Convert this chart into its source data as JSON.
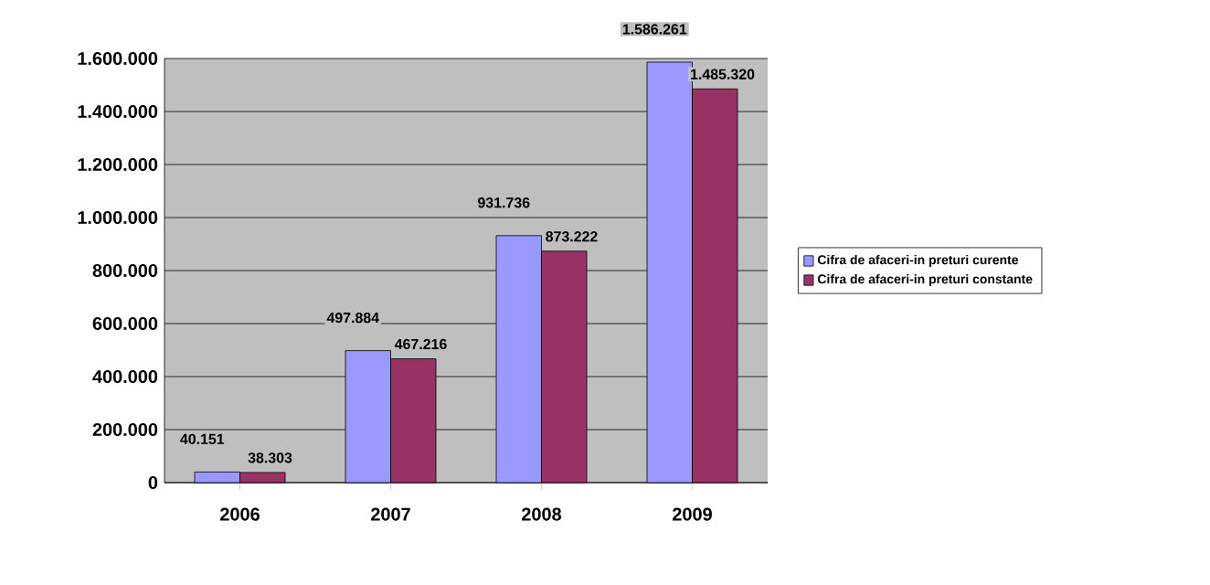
{
  "chart_data": {
    "type": "bar",
    "categories": [
      "2006",
      "2007",
      "2008",
      "2009"
    ],
    "series": [
      {
        "name": "Cifra de afaceri-in preturi curente",
        "color": "#9999ff",
        "values": [
          40151,
          497884,
          931736,
          1586261
        ],
        "value_labels": [
          "40.151",
          "497.884",
          "931.736",
          "1.586.261"
        ]
      },
      {
        "name": "Cifra de afaceri-in preturi constante",
        "color": "#993366",
        "values": [
          38303,
          467216,
          873222,
          1485320
        ],
        "value_labels": [
          "38.303",
          "467.216",
          "873.222",
          "1.485.320"
        ]
      }
    ],
    "ylim": [
      0,
      1600000
    ],
    "yticks": [
      {
        "value": 0,
        "label": "0"
      },
      {
        "value": 200000,
        "label": "200.000"
      },
      {
        "value": 400000,
        "label": "400.000"
      },
      {
        "value": 600000,
        "label": "600.000"
      },
      {
        "value": 800000,
        "label": "800.000"
      },
      {
        "value": 1000000,
        "label": "1.000.000"
      },
      {
        "value": 1200000,
        "label": "1.200.000"
      },
      {
        "value": 1400000,
        "label": "1.400.000"
      },
      {
        "value": 1600000,
        "label": "1.600.000"
      }
    ],
    "grid": "y",
    "legend": "right"
  }
}
